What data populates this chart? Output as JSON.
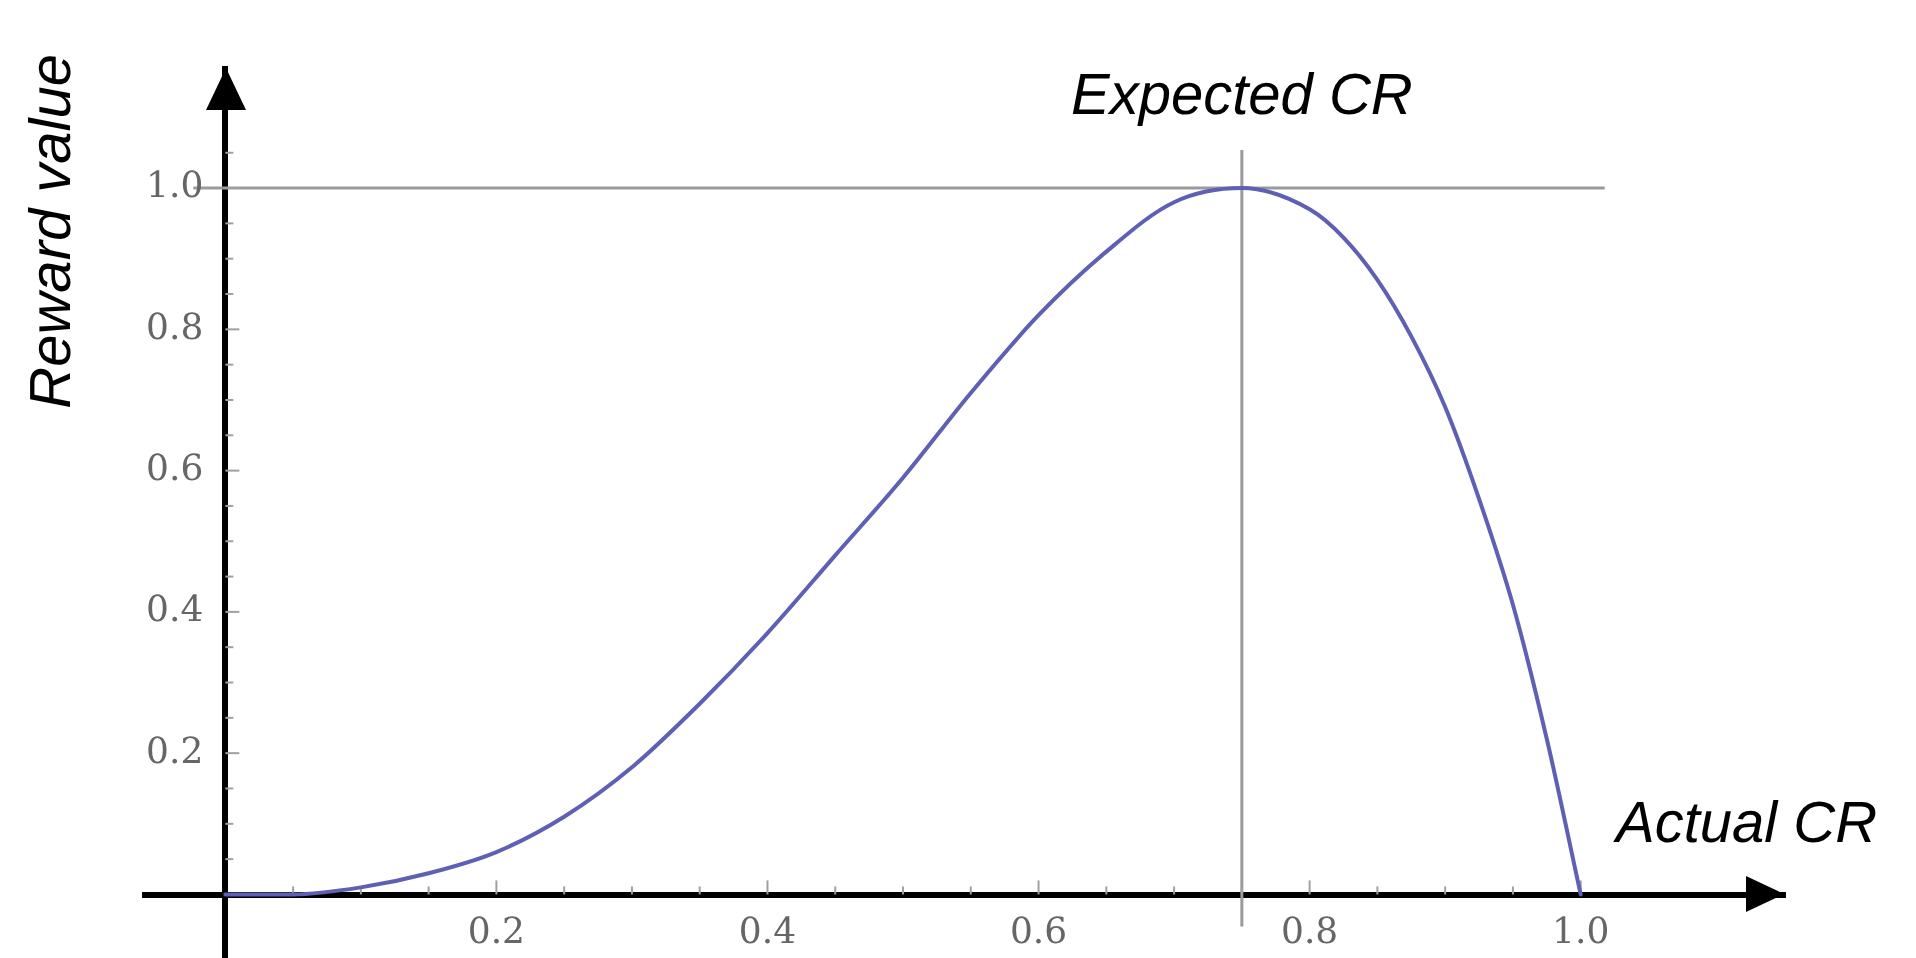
{
  "chart_data": {
    "type": "line",
    "xlabel": "Actual CR",
    "ylabel": "Reward value",
    "x": [
      0,
      0.05,
      0.1,
      0.15,
      0.2,
      0.25,
      0.3,
      0.35,
      0.4,
      0.45,
      0.5,
      0.55,
      0.6,
      0.65,
      0.7,
      0.75,
      0.8,
      0.825,
      0.85,
      0.875,
      0.9,
      0.925,
      0.95,
      0.975,
      1
    ],
    "series": [
      {
        "color": "#5f5fb4",
        "values": [
          0,
          0,
          0.01,
          0.03,
          0.06,
          0.11,
          0.18,
          0.27,
          0.37,
          0.48,
          0.59,
          0.71,
          0.82,
          0.91,
          0.98,
          1,
          0.97,
          0.93,
          0.87,
          0.79,
          0.69,
          0.56,
          0.41,
          0.22,
          0
        ]
      }
    ],
    "xlim": [
      -0.06,
      1.15
    ],
    "ylim": [
      -0.09,
      1.17
    ],
    "xticks": [
      {
        "value": 0.05,
        "label": null
      },
      {
        "value": 0.1,
        "label": null
      },
      {
        "value": 0.15,
        "label": null
      },
      0.2,
      {
        "value": 0.25,
        "label": null
      },
      {
        "value": 0.3,
        "label": null
      },
      {
        "value": 0.35,
        "label": null
      },
      0.4,
      {
        "value": 0.45,
        "label": null
      },
      {
        "value": 0.5,
        "label": null
      },
      {
        "value": 0.55,
        "label": null
      },
      0.6,
      {
        "value": 0.65,
        "label": null
      },
      {
        "value": 0.7,
        "label": null
      },
      {
        "value": 0.75,
        "label": null
      },
      0.8,
      {
        "value": 0.85,
        "label": null
      },
      {
        "value": 0.9,
        "label": null
      },
      {
        "value": 0.95,
        "label": null
      },
      {
        "value": 1,
        "label": "1.0"
      }
    ],
    "yticks": [
      {
        "value": 0.05,
        "label": null
      },
      {
        "value": 0.1,
        "label": null
      },
      {
        "value": 0.15,
        "label": null
      },
      0.2,
      {
        "value": 0.25,
        "label": null
      },
      {
        "value": 0.3,
        "label": null
      },
      {
        "value": 0.35,
        "label": null
      },
      0.4,
      {
        "value": 0.45,
        "label": null
      },
      {
        "value": 0.5,
        "label": null
      },
      {
        "value": 0.55,
        "label": null
      },
      0.6,
      {
        "value": 0.65,
        "label": null
      },
      {
        "value": 0.7,
        "label": null
      },
      {
        "value": 0.75,
        "label": null
      },
      0.8,
      {
        "value": 0.85,
        "label": null
      },
      {
        "value": 0.9,
        "label": null
      },
      {
        "value": 0.95,
        "label": null
      },
      {
        "value": 1,
        "label": "1.0"
      },
      {
        "value": 1.05,
        "label": null
      }
    ],
    "ref_lines": [
      {
        "axis": "y",
        "value": 1,
        "color": "#9a9a9a"
      },
      {
        "axis": "x",
        "value": 0.75,
        "label": "Expected CR",
        "color": "#9a9a9a"
      }
    ],
    "grid": false,
    "legend": false,
    "marker": "none"
  }
}
